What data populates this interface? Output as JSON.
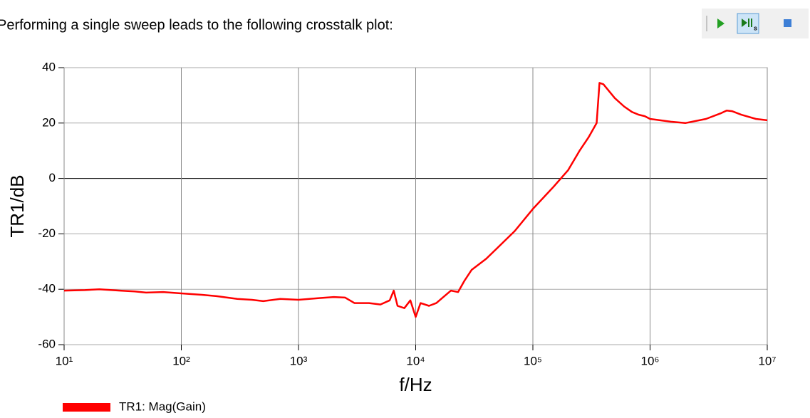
{
  "text": "Performing a single sweep leads to the following crosstalk plot:",
  "chart_data": {
    "type": "line",
    "xlabel": "f/Hz",
    "ylabel": "TR1/dB",
    "xscale": "log",
    "grid": true,
    "xlim": [
      10,
      10000000
    ],
    "ylim": [
      -60,
      40
    ],
    "xticks": [
      {
        "value": 10,
        "label": "10¹"
      },
      {
        "value": 100,
        "label": "10²"
      },
      {
        "value": 1000,
        "label": "10³"
      },
      {
        "value": 10000,
        "label": "10⁴"
      },
      {
        "value": 100000,
        "label": "10⁵"
      },
      {
        "value": 1000000,
        "label": "10⁶"
      },
      {
        "value": 10000000,
        "label": "10⁷"
      }
    ],
    "yticks": [
      -60,
      -40,
      -20,
      0,
      20,
      40
    ],
    "legend": "bottom-left",
    "x": [
      10,
      15,
      20,
      30,
      40,
      50,
      70,
      100,
      150,
      200,
      300,
      400,
      500,
      700,
      1000,
      1500,
      2000,
      2500,
      3000,
      4000,
      5000,
      6000,
      6500,
      7000,
      8000,
      9000,
      10000,
      11000,
      13000,
      15000,
      17000,
      20000,
      23000,
      26000,
      30000,
      40000,
      50000,
      70000,
      100000,
      150000,
      200000,
      250000,
      300000,
      350000,
      370000,
      400000,
      500000,
      600000,
      700000,
      800000,
      900000,
      1000000,
      1500000,
      2000000,
      3000000,
      4000000,
      4500000,
      5000000,
      6000000,
      8000000,
      10000000
    ],
    "series": [
      {
        "name": "TR1: Mag(Gain)",
        "color": "#ff0000",
        "values": [
          -40.5,
          -40.3,
          -40,
          -40.5,
          -40.8,
          -41.2,
          -41,
          -41.5,
          -42,
          -42.5,
          -43.5,
          -43.8,
          -44.3,
          -43.5,
          -43.8,
          -43.2,
          -42.8,
          -43,
          -45,
          -45,
          -45.5,
          -44,
          -40.5,
          -46,
          -46.8,
          -44,
          -50,
          -45,
          -46,
          -45,
          -43,
          -40.5,
          -41,
          -37,
          -33,
          -29,
          -25,
          -19,
          -11,
          -3,
          3,
          10,
          15,
          20,
          34.5,
          34,
          29,
          26,
          24,
          23,
          22.5,
          21.5,
          20.5,
          20,
          21.5,
          23.5,
          24.5,
          24.3,
          23,
          21.5,
          21
        ]
      }
    ]
  }
}
